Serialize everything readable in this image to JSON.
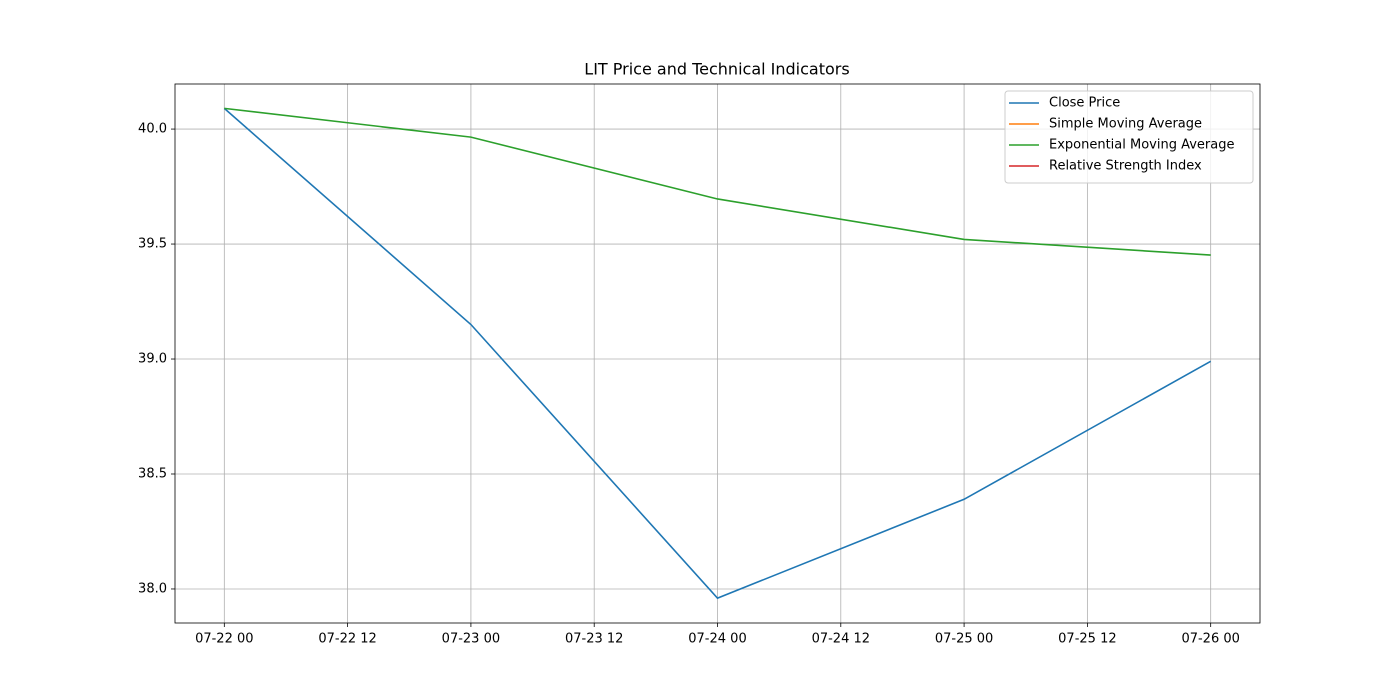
{
  "chart_data": {
    "type": "line",
    "title": "LIT Price and Technical Indicators",
    "x": [
      22,
      23,
      24,
      25,
      26
    ],
    "series": [
      {
        "name": "Close Price",
        "color": "#1f77b4",
        "values": [
          40.09,
          39.15,
          37.96,
          38.39,
          38.99
        ]
      },
      {
        "name": "Simple Moving Average",
        "color": "#ff7f0e",
        "values": [
          null,
          null,
          null,
          null,
          null
        ]
      },
      {
        "name": "Exponential Moving Average",
        "color": "#2ca02c",
        "values": [
          40.09,
          39.965,
          39.696,
          39.52,
          39.452
        ]
      },
      {
        "name": "Relative Strength Index",
        "color": "#d62728",
        "values": [
          null,
          null,
          null,
          null,
          null
        ]
      }
    ],
    "xlim": [
      21.8,
      26.2
    ],
    "xticks": [
      {
        "value": 22,
        "label": "07-22 00"
      },
      {
        "value": 22.5,
        "label": "07-22 12"
      },
      {
        "value": 23,
        "label": "07-23 00"
      },
      {
        "value": 23.5,
        "label": "07-23 12"
      },
      {
        "value": 24,
        "label": "07-24 00"
      },
      {
        "value": 24.5,
        "label": "07-24 12"
      },
      {
        "value": 25,
        "label": "07-25 00"
      },
      {
        "value": 25.5,
        "label": "07-25 12"
      },
      {
        "value": 26,
        "label": "07-26 00"
      }
    ],
    "ylim": [
      37.852,
      40.196
    ],
    "yticks": [
      {
        "value": 38,
        "label": "38.0"
      },
      {
        "value": 38.5,
        "label": "38.5"
      },
      {
        "value": 39,
        "label": "39.0"
      },
      {
        "value": 39.5,
        "label": "39.5"
      },
      {
        "value": 40,
        "label": "40.0"
      }
    ],
    "grid": true,
    "legend": "upper right"
  }
}
